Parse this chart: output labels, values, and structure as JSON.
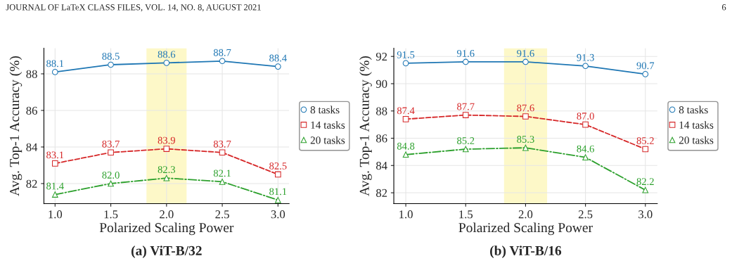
{
  "chart_data": [
    {
      "type": "line",
      "title": "(a) ViT-B/32",
      "xlabel": "Polarized Scaling Power",
      "ylabel": "Avg. Top-1 Accuracy (%)",
      "annotations": [
        "JOURNAL OF LaTeX CLASS FILES, VOL. 14, NO. 8, AUGUST 2021"
      ],
      "x": [
        1.0,
        1.5,
        2.0,
        2.5,
        3.0
      ],
      "series": [
        {
          "name": "8 tasks",
          "color": "#1f77b4",
          "values": [
            88.1,
            88.5,
            88.6,
            88.7,
            88.4
          ],
          "marker": "circle",
          "line_style": "solid"
        },
        {
          "name": "14 tasks",
          "color": "#d62728",
          "values": [
            83.1,
            83.7,
            83.9,
            83.7,
            82.5
          ],
          "marker": "square",
          "line_style": "dashed"
        },
        {
          "name": "20 tasks",
          "color": "#2ca02c",
          "values": [
            81.4,
            82.0,
            82.3,
            82.1,
            81.1
          ],
          "value_labels": [
            "81.4",
            "82.0",
            "82.3",
            "82.1",
            "81.1"
          ],
          "marker": "triangle",
          "line_style": "dashdot"
        }
      ],
      "xlim": [
        0.9,
        3.1
      ],
      "xticks": [
        {
          "value": 1.0,
          "label": "1.0"
        },
        {
          "value": 1.5,
          "label": "1.5"
        },
        {
          "value": 2.0,
          "label": "2.0"
        },
        {
          "value": 2.5,
          "label": "2.5"
        },
        {
          "value": 3.0,
          "label": "3.0"
        }
      ],
      "ylim": [
        80.9,
        89.4
      ],
      "yticks": [
        82,
        84,
        86,
        88
      ],
      "bands": [
        {
          "axis": "x",
          "from": 1.82,
          "to": 2.18,
          "color": "#fdf8c8"
        }
      ],
      "data_labels": true,
      "grid": true,
      "legend": "right"
    },
    {
      "type": "line",
      "title": "(b) ViT-B/16",
      "xlabel": "Polarized Scaling Power",
      "ylabel": "Avg. Top-1 Accuracy (%)",
      "annotations": [
        "6"
      ],
      "x": [
        1.0,
        1.5,
        2.0,
        2.5,
        3.0
      ],
      "series": [
        {
          "name": "8 tasks",
          "color": "#1f77b4",
          "values": [
            91.5,
            91.6,
            91.6,
            91.3,
            90.7
          ],
          "marker": "circle",
          "line_style": "solid"
        },
        {
          "name": "14 tasks",
          "color": "#d62728",
          "values": [
            87.4,
            87.7,
            87.6,
            87.0,
            85.2
          ],
          "value_labels": [
            "87.4",
            "87.7",
            "87.6",
            "87.0",
            "85.2"
          ],
          "marker": "square",
          "line_style": "dashed"
        },
        {
          "name": "20 tasks",
          "color": "#2ca02c",
          "values": [
            84.8,
            85.2,
            85.3,
            84.6,
            82.2
          ],
          "marker": "triangle",
          "line_style": "dashdot"
        }
      ],
      "xlim": [
        0.9,
        3.1
      ],
      "xticks": [
        {
          "value": 1.0,
          "label": "1.0"
        },
        {
          "value": 1.5,
          "label": "1.5"
        },
        {
          "value": 2.0,
          "label": "2.0"
        },
        {
          "value": 2.5,
          "label": "2.5"
        },
        {
          "value": 3.0,
          "label": "3.0"
        }
      ],
      "ylim": [
        81.2,
        92.6
      ],
      "yticks": [
        82,
        84,
        86,
        88,
        90,
        92
      ],
      "bands": [
        {
          "axis": "x",
          "from": 1.82,
          "to": 2.18,
          "color": "#fdf8c8"
        }
      ],
      "data_labels": true,
      "grid": true,
      "legend": "right"
    }
  ]
}
